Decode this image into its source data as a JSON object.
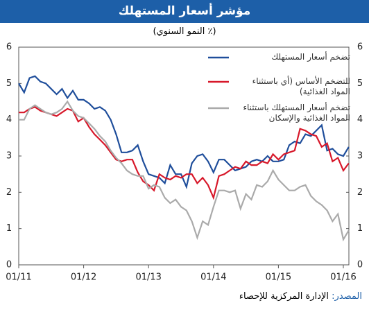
{
  "chart_data": {
    "type": "line",
    "title": "مؤشر أسعار المستهلك",
    "subtitle": "(٪ النمو السنوي)",
    "source_label": "المصدر:",
    "source": "الإدارة المركزية للإحصاء",
    "categories": [
      "01/11",
      null,
      null,
      null,
      null,
      null,
      null,
      null,
      null,
      null,
      null,
      null,
      "01/12",
      null,
      null,
      null,
      null,
      null,
      null,
      null,
      null,
      null,
      null,
      null,
      "01/13",
      null,
      null,
      null,
      null,
      null,
      null,
      null,
      null,
      null,
      null,
      null,
      "01/14",
      null,
      null,
      null,
      null,
      null,
      null,
      null,
      null,
      null,
      null,
      null,
      "01/15",
      null,
      null,
      null,
      null,
      null,
      null,
      null,
      null,
      null,
      null,
      null,
      "01/16",
      null
    ],
    "ylim": [
      0,
      6
    ],
    "yticks": [
      0,
      1,
      2,
      3,
      4,
      5,
      6
    ],
    "series": [
      {
        "name": "تضخم أسعار المستهلك",
        "color": "#1f4e9b",
        "values": [
          5.0,
          4.75,
          5.15,
          5.2,
          5.05,
          5.0,
          4.85,
          4.7,
          4.85,
          4.6,
          4.8,
          4.55,
          4.55,
          4.45,
          4.3,
          4.35,
          4.25,
          4.0,
          3.6,
          3.1,
          3.1,
          3.15,
          3.3,
          2.85,
          2.5,
          2.45,
          2.4,
          2.25,
          2.75,
          2.5,
          2.5,
          2.15,
          2.8,
          3.0,
          3.05,
          2.85,
          2.55,
          2.9,
          2.9,
          2.75,
          2.6,
          2.65,
          2.7,
          2.85,
          2.9,
          2.85,
          3.0,
          2.85,
          2.85,
          2.9,
          3.3,
          3.4,
          3.35,
          3.6,
          3.55,
          3.7,
          3.85,
          3.15,
          3.2,
          3.05,
          3.0,
          3.25
        ]
      },
      {
        "name": "التضخم الأساس (أي باستثناء المواد الغذائية)",
        "color": "#d7182a",
        "values": [
          4.2,
          4.2,
          4.3,
          4.35,
          4.25,
          4.2,
          4.15,
          4.1,
          4.2,
          4.3,
          4.25,
          3.95,
          4.05,
          3.8,
          3.6,
          3.45,
          3.3,
          3.1,
          2.9,
          2.85,
          2.9,
          2.9,
          2.55,
          2.3,
          2.2,
          2.05,
          2.5,
          2.4,
          2.35,
          2.45,
          2.4,
          2.5,
          2.5,
          2.25,
          2.4,
          2.2,
          1.85,
          2.45,
          2.5,
          2.6,
          2.7,
          2.65,
          2.85,
          2.75,
          2.75,
          2.85,
          2.8,
          3.05,
          2.9,
          3.05,
          3.1,
          3.15,
          3.75,
          3.7,
          3.6,
          3.55,
          3.25,
          3.35,
          2.85,
          2.95,
          2.6,
          2.8
        ]
      },
      {
        "name": "تضخم أسعار المستهلك باستثناء المواد الغذائية والإسكان",
        "color": "#aaaaaa",
        "values": [
          4.0,
          4.0,
          4.3,
          4.4,
          4.3,
          4.2,
          4.15,
          4.2,
          4.3,
          4.5,
          4.25,
          4.1,
          4.05,
          3.9,
          3.75,
          3.55,
          3.4,
          3.15,
          2.95,
          2.8,
          2.6,
          2.5,
          2.45,
          2.45,
          2.1,
          2.2,
          2.15,
          1.85,
          1.7,
          1.8,
          1.6,
          1.5,
          1.2,
          0.75,
          1.2,
          1.1,
          1.6,
          2.05,
          2.05,
          2.0,
          2.05,
          1.55,
          1.95,
          1.8,
          2.2,
          2.15,
          2.3,
          2.6,
          2.35,
          2.2,
          2.05,
          2.05,
          2.15,
          2.2,
          1.9,
          1.75,
          1.65,
          1.5,
          1.2,
          1.4,
          0.7,
          0.95
        ]
      }
    ]
  }
}
